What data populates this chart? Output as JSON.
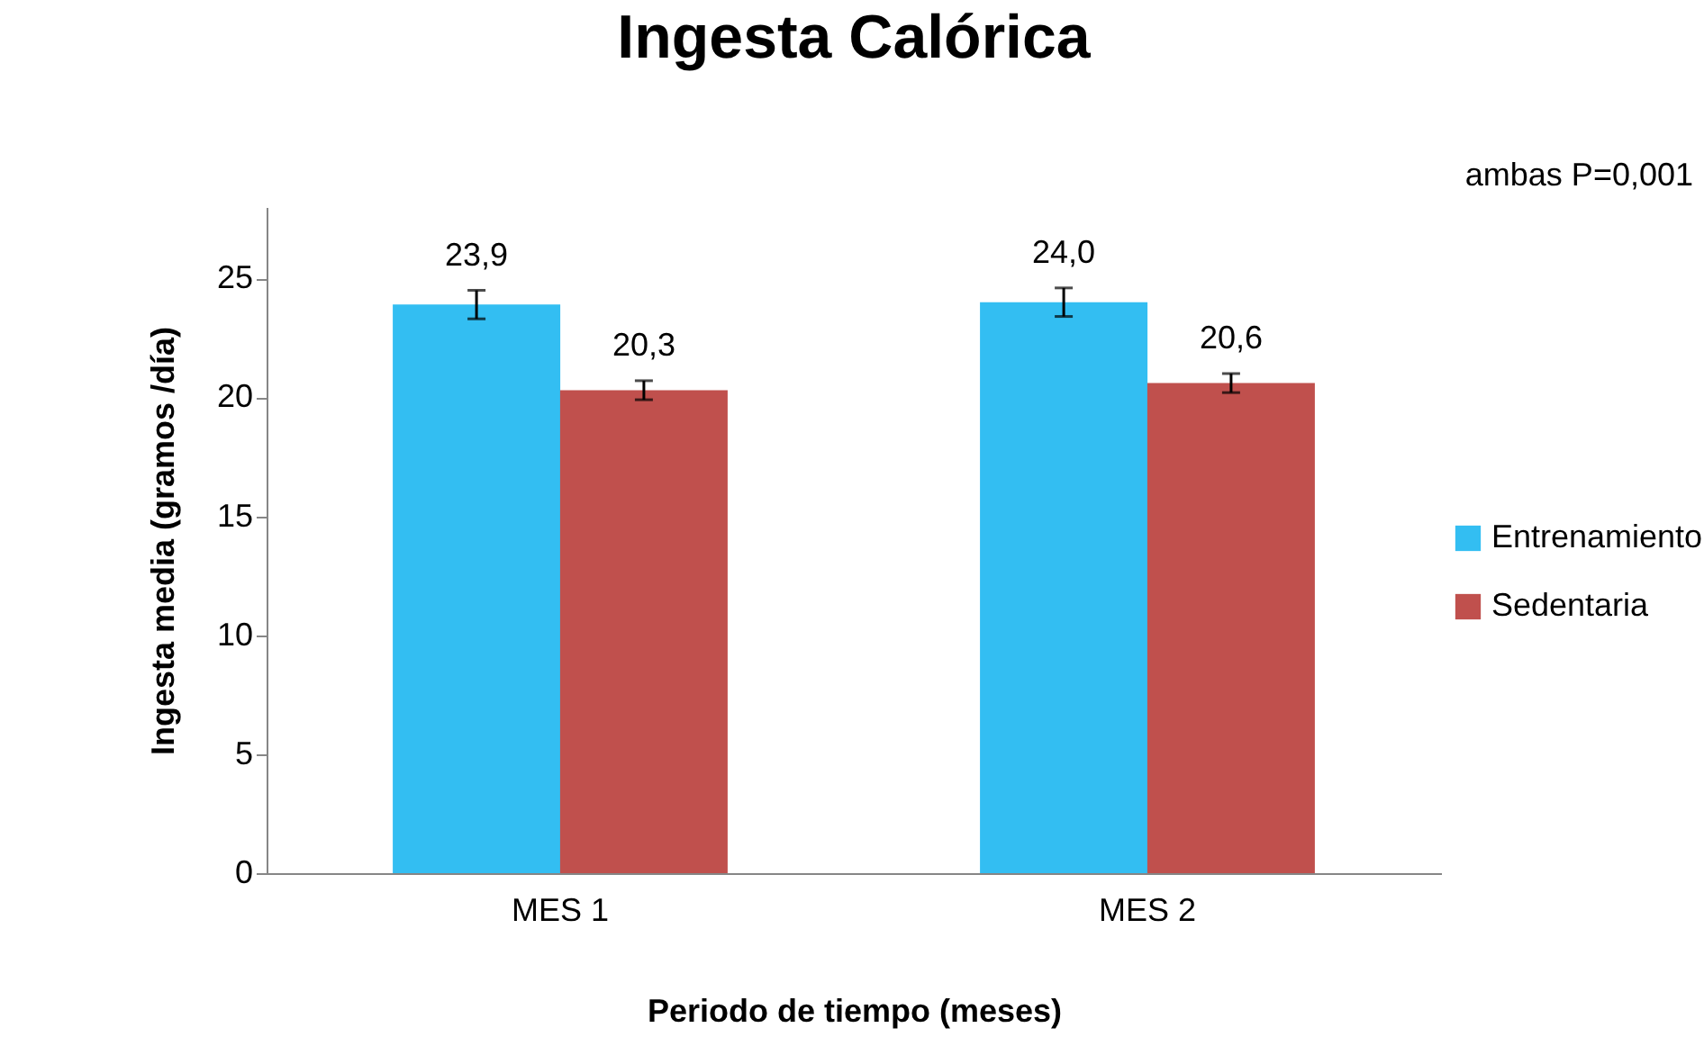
{
  "chart_data": {
    "type": "bar",
    "title": "Ingesta Calórica",
    "xlabel": "Periodo de tiempo (meses)",
    "ylabel": "Ingesta media  (gramos /día)",
    "categories": [
      "MES 1",
      "MES 2"
    ],
    "series": [
      {
        "name": "Entrenamiento",
        "color": "#33bef2",
        "values": [
          23.9,
          24.0
        ],
        "errors": [
          0.6,
          0.6
        ],
        "value_labels": [
          "23,9",
          "24,0"
        ]
      },
      {
        "name": "Sedentaria",
        "color": "#c0504d",
        "values": [
          20.3,
          20.6
        ],
        "errors": [
          0.4,
          0.4
        ],
        "value_labels": [
          "20,3",
          "20,6"
        ]
      }
    ],
    "ylim": [
      0,
      28
    ],
    "yticks": [
      0,
      5,
      10,
      15,
      20,
      25
    ],
    "grid": false,
    "legend": "right",
    "annotations": [
      "ambas P=0,001"
    ]
  }
}
